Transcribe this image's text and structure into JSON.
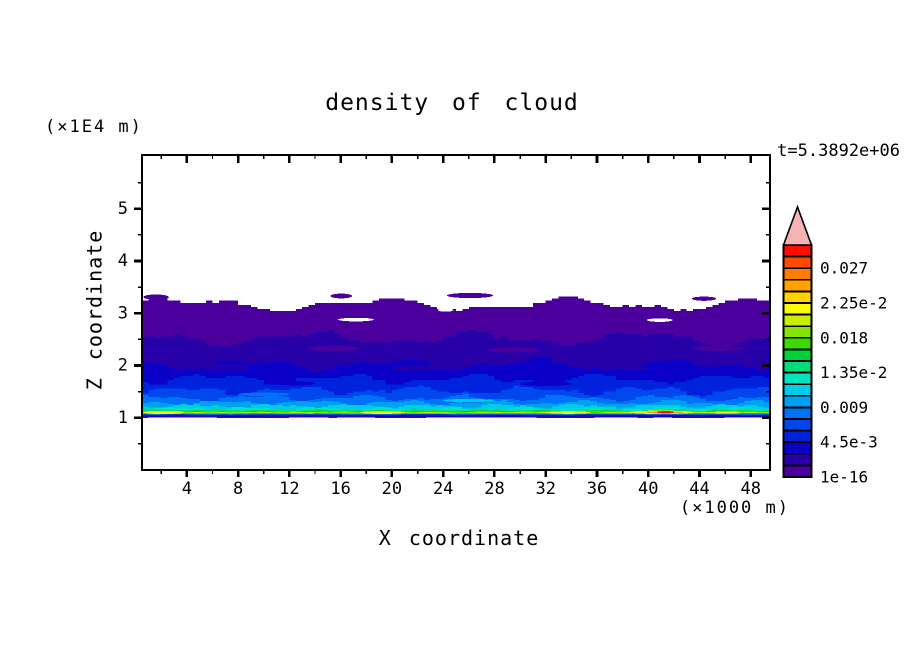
{
  "header": {
    "title": "density of cloud",
    "time_annotation": "t=5.3892e+06",
    "y_axis_unit": "(×1E4 m)"
  },
  "axes": {
    "x_title": "X coordinate",
    "y_title": "Z coordinate",
    "x_unit": "(×1000 m)"
  },
  "chart_data": {
    "type": "heatmap",
    "subtype": "filled_contour",
    "title": "density of cloud",
    "xlabel": "X coordinate",
    "ylabel": "Z coordinate",
    "x_unit": "(×1000 m)",
    "y_unit": "(×1E4 m)",
    "time_annotation": "t=5.3892e+06",
    "xlim": [
      0.5,
      49.5
    ],
    "ylim": [
      0,
      6.03
    ],
    "x_major_ticks": [
      4,
      8,
      12,
      16,
      20,
      24,
      28,
      32,
      36,
      40,
      44,
      48
    ],
    "x_minor_ticks": [
      2,
      6,
      10,
      14,
      18,
      22,
      26,
      30,
      34,
      38,
      42,
      46
    ],
    "y_major_ticks": [
      1,
      2,
      3,
      4,
      5
    ],
    "y_minor_ticks": [
      0.5,
      1.5,
      2.5,
      3.5,
      4.5,
      5.5
    ],
    "grid": false,
    "legend_position": "right-colorbar",
    "colorbar": {
      "orientation": "vertical",
      "segment_step": 0.0015,
      "segments_bottom_to_top": [
        "#4B009E",
        "#2800A8",
        "#0A00C8",
        "#0022DC",
        "#0048EE",
        "#0072F8",
        "#00A0F0",
        "#00CCE8",
        "#00E4C0",
        "#00DC7A",
        "#00D238",
        "#3CDA00",
        "#86E400",
        "#C8EE00",
        "#FAFA00",
        "#FFD200",
        "#FFA200",
        "#FF7A00",
        "#FF4A00",
        "#FF0E00"
      ],
      "overflow_arrow_color": "#F6B3B3",
      "labels_bottom_to_top": [
        {
          "text": "1e-16",
          "value": 1e-16
        },
        {
          "text": "4.5e-3",
          "value": 0.0045
        },
        {
          "text": "0.009",
          "value": 0.009
        },
        {
          "text": "1.35e-2",
          "value": 0.0135
        },
        {
          "text": "0.018",
          "value": 0.018
        },
        {
          "text": "2.25e-2",
          "value": 0.0225
        },
        {
          "text": "0.027",
          "value": 0.027
        }
      ],
      "label_every_n_segments": 3
    },
    "bands": [
      {
        "color": 0,
        "top": 3.17,
        "a1": 0.09,
        "p1": 15.0,
        "a2": 0.05,
        "p2": 6.5,
        "jit": 0.02,
        "q": 0.04,
        "bottom": 1.0
      },
      {
        "color": 1,
        "top": 2.52,
        "a1": 0.1,
        "p1": 13.0,
        "a2": 0.05,
        "p2": 5.5,
        "jit": 0.025,
        "q": 0.04,
        "bottom": 1.02
      },
      {
        "color": 2,
        "top": 2.02,
        "a1": 0.08,
        "p1": 11.0,
        "a2": 0.04,
        "p2": 5.0,
        "jit": 0.025,
        "q": 0.04,
        "bottom": 1.035
      },
      {
        "color": 3,
        "top": 1.74,
        "a1": 0.07,
        "p1": 10.0,
        "a2": 0.04,
        "p2": 4.5,
        "jit": 0.02,
        "q": 0.04,
        "bottom": 1.048
      },
      {
        "color": 4,
        "top": 1.52,
        "a1": 0.06,
        "p1": 9.0,
        "a2": 0.035,
        "p2": 4.0,
        "jit": 0.02,
        "q": 0.03,
        "bottom": 1.058
      },
      {
        "color": 5,
        "top": 1.38,
        "a1": 0.045,
        "p1": 8.0,
        "a2": 0.03,
        "p2": 3.6,
        "jit": 0.015,
        "q": 0.02,
        "bottom": 1.065
      },
      {
        "color": 6,
        "top": 1.285,
        "a1": 0.035,
        "p1": 7.0,
        "a2": 0.022,
        "p2": 3.3,
        "jit": 0.012,
        "q": 0.02,
        "bottom": 1.071
      },
      {
        "color": 7,
        "top": 1.225,
        "a1": 0.028,
        "p1": 6.0,
        "a2": 0.016,
        "p2": 3.0,
        "jit": 0.01,
        "q": 0.02,
        "bottom": 1.076
      },
      {
        "color": 8,
        "top": 1.18,
        "a1": 0.02,
        "p1": 5.5,
        "a2": 0.012,
        "p2": 2.8,
        "jit": 0.008,
        "q": 0.01,
        "bottom": 1.08
      },
      {
        "color": 9,
        "top": 1.152,
        "a1": 0.016,
        "p1": 5.0,
        "a2": 0.01,
        "p2": 2.6,
        "jit": 0.007,
        "q": 0.01,
        "bottom": 1.083
      },
      {
        "color": 10,
        "top": 1.132,
        "a1": 0.012,
        "p1": 4.5,
        "a2": 0.008,
        "p2": 2.4,
        "jit": 0.006,
        "q": 0.01,
        "bottom": 1.086
      },
      {
        "color": 11,
        "top": 1.118,
        "a1": 0.01,
        "p1": 4.0,
        "a2": 0.006,
        "p2": 2.2,
        "jit": 0.005,
        "q": 0.01,
        "bottom": 1.089
      },
      {
        "color": 12,
        "top": 1.107,
        "a1": 0.008,
        "p1": 3.5,
        "a2": 0.005,
        "p2": 2.0,
        "jit": 0.004,
        "q": 0.01,
        "bottom": 1.091
      },
      {
        "color": 13,
        "top": 1.099,
        "a1": 0.006,
        "p1": 3.0,
        "a2": 0.004,
        "p2": 1.8,
        "jit": 0.003,
        "q": 0.01,
        "bottom": 1.093
      }
    ],
    "islands": [
      {
        "x0": 0.6,
        "x1": 2.6,
        "z": 3.31,
        "h": 0.05
      },
      {
        "x0": 15.2,
        "x1": 16.9,
        "z": 3.33,
        "h": 0.045
      },
      {
        "x0": 24.3,
        "x1": 27.9,
        "z": 3.34,
        "h": 0.05
      },
      {
        "x0": 43.4,
        "x1": 45.3,
        "z": 3.28,
        "h": 0.04
      }
    ],
    "holes": [
      {
        "x0": 15.8,
        "x1": 18.6,
        "z": 2.88,
        "h": 0.035
      },
      {
        "x0": 39.9,
        "x1": 41.9,
        "z": 2.87,
        "h": 0.035
      },
      {
        "x0": 23.6,
        "x1": 24.8,
        "z": 3.06,
        "h": 0.03
      }
    ],
    "patches": [
      {
        "color": 0,
        "x0": 13.5,
        "x1": 17.5,
        "z": 2.33,
        "h": 0.05
      },
      {
        "color": 0,
        "x0": 27.5,
        "x1": 31.5,
        "z": 2.3,
        "h": 0.045
      },
      {
        "color": 0,
        "x0": 43.5,
        "x1": 47.5,
        "z": 2.33,
        "h": 0.05
      },
      {
        "color": 1,
        "x0": 5.0,
        "x1": 9.0,
        "z": 1.97,
        "h": 0.05
      },
      {
        "color": 1,
        "x0": 20.0,
        "x1": 24.0,
        "z": 1.95,
        "h": 0.045
      },
      {
        "color": 1,
        "x0": 36.0,
        "x1": 40.0,
        "z": 1.96,
        "h": 0.05
      },
      {
        "color": 2,
        "x0": 11.0,
        "x1": 14.0,
        "z": 1.66,
        "h": 0.04
      },
      {
        "color": 2,
        "x0": 30.0,
        "x1": 34.0,
        "z": 1.65,
        "h": 0.04
      },
      {
        "color": 5,
        "x0": 8.0,
        "x1": 12.0,
        "z": 1.45,
        "h": 0.035
      },
      {
        "color": 7,
        "x0": 24.0,
        "x1": 28.0,
        "z": 1.33,
        "h": 0.03
      }
    ],
    "spots": [
      {
        "color": 14,
        "x0": 0.6,
        "x1": 3.8,
        "z": 1.103,
        "h": 0.03
      },
      {
        "color": 14,
        "x0": 17.5,
        "x1": 21.0,
        "z": 1.101,
        "h": 0.026
      },
      {
        "color": 14,
        "x0": 32.0,
        "x1": 35.5,
        "z": 1.1,
        "h": 0.024
      },
      {
        "color": 14,
        "x0": 38.5,
        "x1": 43.5,
        "z": 1.104,
        "h": 0.032
      },
      {
        "color": 14,
        "x0": 45.0,
        "x1": 47.2,
        "z": 1.1,
        "h": 0.022
      },
      {
        "color": 16,
        "x0": 39.8,
        "x1": 42.8,
        "z": 1.104,
        "h": 0.02
      },
      {
        "color": 19,
        "x0": 40.7,
        "x1": 42.0,
        "z": 1.104,
        "h": 0.012
      }
    ]
  }
}
